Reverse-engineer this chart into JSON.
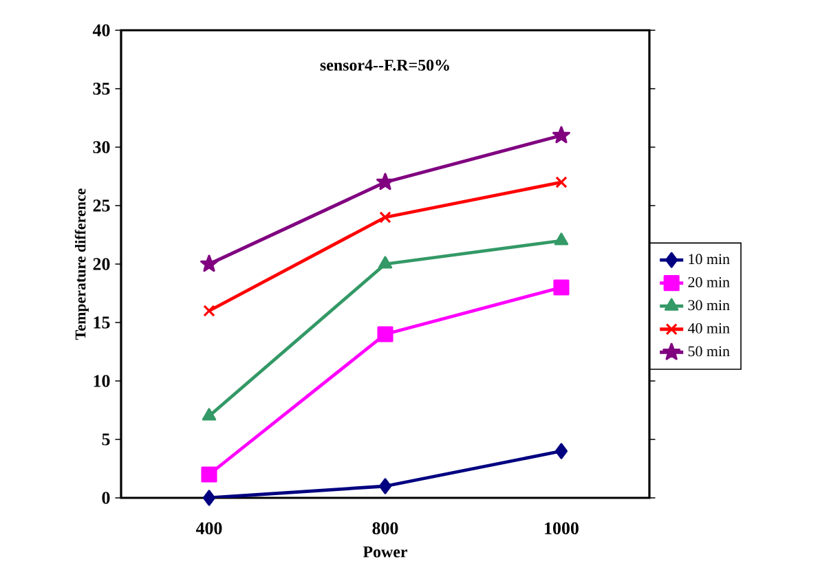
{
  "chart_data": {
    "type": "line",
    "title": "sensor4--F.R=50%",
    "xlabel": "Power",
    "ylabel": "Temperature difference",
    "categories": [
      "400",
      "800",
      "1000"
    ],
    "series": [
      {
        "name": "10 min",
        "color": "#000080",
        "marker": "diamond",
        "values": [
          0,
          1,
          4
        ]
      },
      {
        "name": "20 min",
        "color": "#ff00ff",
        "marker": "square",
        "values": [
          2,
          14,
          18
        ]
      },
      {
        "name": "30 min",
        "color": "#339966",
        "marker": "triangle",
        "values": [
          7,
          20,
          22
        ]
      },
      {
        "name": "40 min",
        "color": "#ff0000",
        "marker": "cross",
        "values": [
          16,
          24,
          27
        ]
      },
      {
        "name": "50 min",
        "color": "#800080",
        "marker": "star",
        "values": [
          20,
          27,
          31
        ]
      }
    ],
    "ylim": [
      0,
      40
    ],
    "yticks": [
      0,
      5,
      10,
      15,
      20,
      25,
      30,
      35,
      40
    ],
    "grid": false,
    "legend": "right",
    "line_style": "solid"
  }
}
